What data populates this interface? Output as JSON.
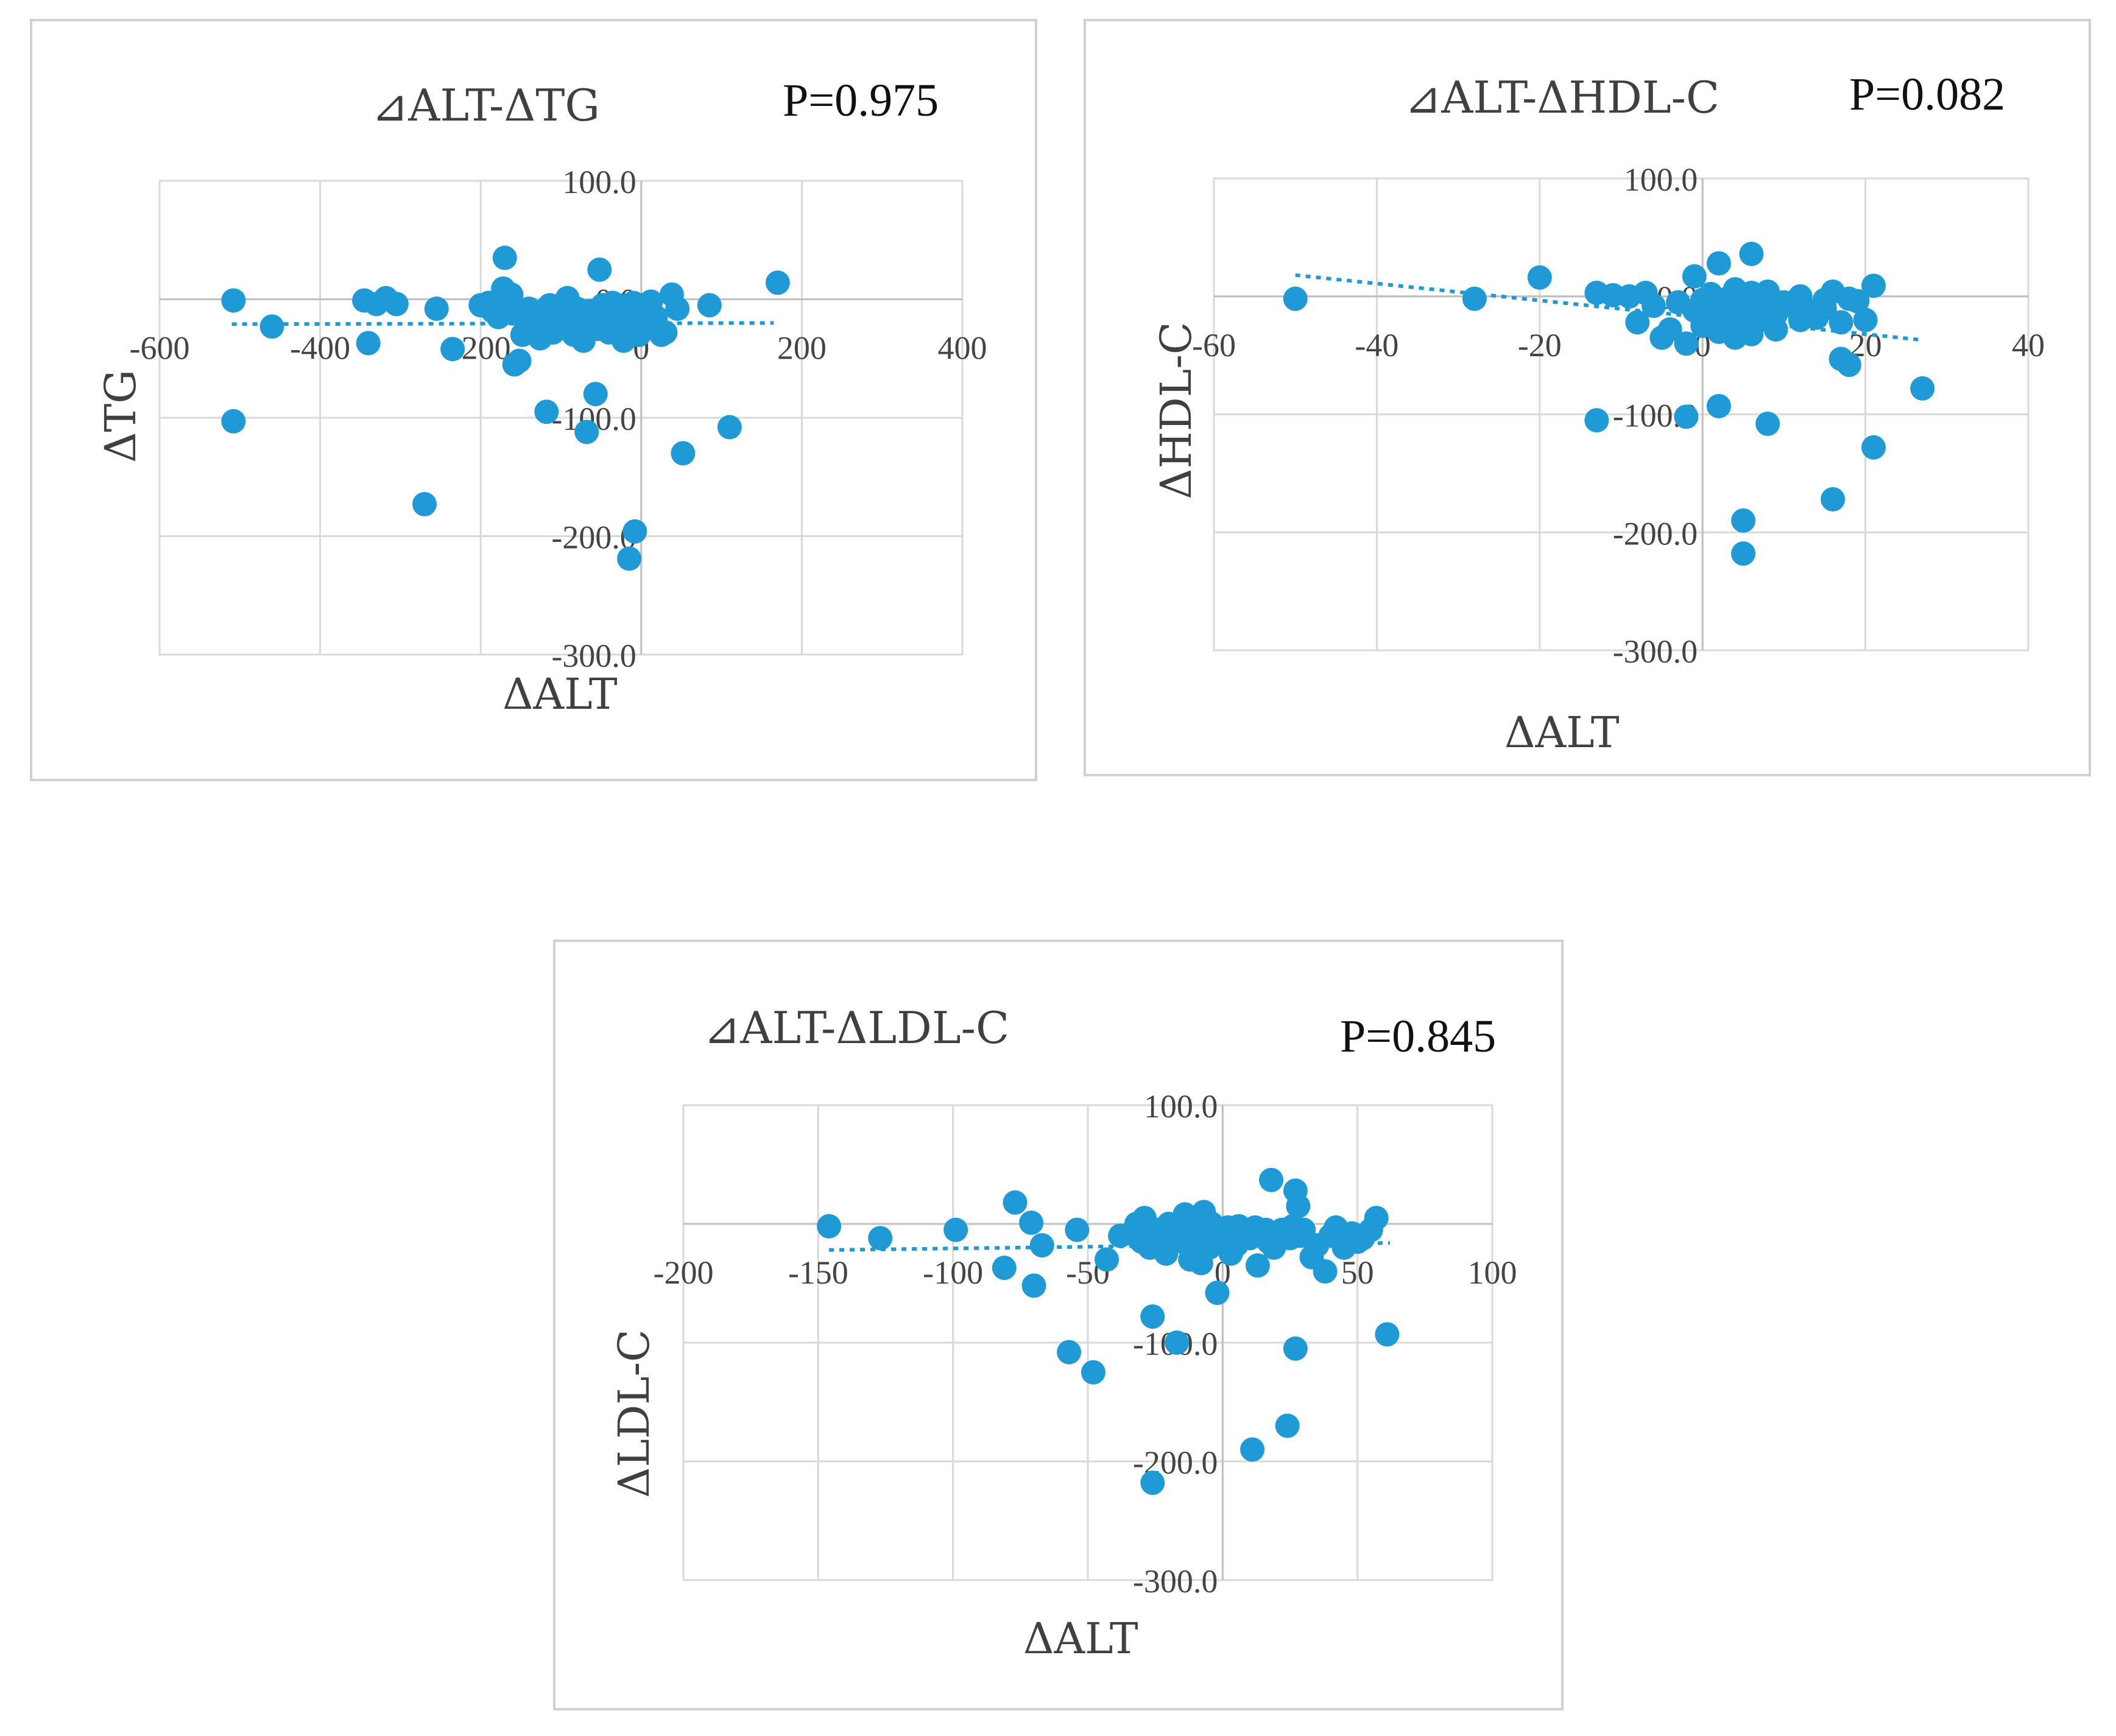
{
  "colors": {
    "points": "#1f9ad6",
    "trend": "#1f9ad6"
  },
  "chart_data": [
    {
      "type": "scatter",
      "title": "⊿ALT-ΔTG",
      "p_value": "P=0.975",
      "xlabel": "ΔALT",
      "ylabel": "ΔTG",
      "xlim": [
        -600,
        400
      ],
      "ylim": [
        -300,
        100
      ],
      "x_ticks": [
        "-600",
        "-400",
        "-200",
        "0",
        "200",
        "400"
      ],
      "y_ticks": [
        "100.0",
        "0.0",
        "-100.0",
        "-200.0",
        "-300.0"
      ],
      "grid": true,
      "trendline": {
        "x": [
          -510,
          165
        ],
        "y": [
          -21,
          -20
        ]
      },
      "points": [
        [
          -508,
          -1
        ],
        [
          -460,
          -23
        ],
        [
          -508,
          -103
        ],
        [
          -345,
          -1
        ],
        [
          -340,
          -37
        ],
        [
          -330,
          -4
        ],
        [
          -318,
          1
        ],
        [
          -305,
          -4
        ],
        [
          -255,
          -8
        ],
        [
          -235,
          -42
        ],
        [
          -270,
          -173
        ],
        [
          -200,
          -5
        ],
        [
          -190,
          -3
        ],
        [
          -185,
          -10
        ],
        [
          -178,
          -15
        ],
        [
          -172,
          9
        ],
        [
          -170,
          35
        ],
        [
          -168,
          0
        ],
        [
          -162,
          4
        ],
        [
          -160,
          -12
        ],
        [
          -158,
          -55
        ],
        [
          -152,
          -52
        ],
        [
          -148,
          -30
        ],
        [
          -143,
          -17
        ],
        [
          -140,
          -8
        ],
        [
          -136,
          -25
        ],
        [
          -130,
          -20
        ],
        [
          -126,
          -33
        ],
        [
          -122,
          -10
        ],
        [
          -118,
          -95
        ],
        [
          -114,
          -5
        ],
        [
          -110,
          -28
        ],
        [
          -105,
          -15
        ],
        [
          -100,
          -22
        ],
        [
          -96,
          -3
        ],
        [
          -92,
          1
        ],
        [
          -88,
          -12
        ],
        [
          -84,
          -30
        ],
        [
          -80,
          -8
        ],
        [
          -76,
          -18
        ],
        [
          -72,
          -35
        ],
        [
          -68,
          -112
        ],
        [
          -64,
          -10
        ],
        [
          -60,
          -20
        ],
        [
          -57,
          -80
        ],
        [
          -54,
          -25
        ],
        [
          -52,
          25
        ],
        [
          -48,
          -5
        ],
        [
          -44,
          -15
        ],
        [
          -40,
          -28
        ],
        [
          -36,
          -3
        ],
        [
          -32,
          -12
        ],
        [
          -28,
          -5
        ],
        [
          -25,
          -22
        ],
        [
          -22,
          -35
        ],
        [
          -18,
          -8
        ],
        [
          -15,
          -219
        ],
        [
          -10,
          -3
        ],
        [
          -8,
          -196
        ],
        [
          -6,
          -12
        ],
        [
          -3,
          -30
        ],
        [
          0,
          -5
        ],
        [
          5,
          -18
        ],
        [
          8,
          -8
        ],
        [
          12,
          -2
        ],
        [
          18,
          -15
        ],
        [
          25,
          -30
        ],
        [
          30,
          -28
        ],
        [
          38,
          4
        ],
        [
          45,
          -8
        ],
        [
          52,
          -130
        ],
        [
          85,
          -5
        ],
        [
          110,
          -108
        ],
        [
          170,
          14
        ]
      ]
    },
    {
      "type": "scatter",
      "title": "⊿ALT-ΔHDL-C",
      "p_value": "P=0.082",
      "xlabel": "ΔALT",
      "ylabel": "ΔHDL-C",
      "xlim": [
        -60,
        40
      ],
      "ylim": [
        -300,
        100
      ],
      "x_ticks": [
        "-60",
        "-40",
        "-20",
        "0",
        "20",
        "40"
      ],
      "y_ticks": [
        "100.0",
        "0.0",
        "-100.0",
        "-200.0",
        "-300.0"
      ],
      "grid": true,
      "trendline": {
        "x": [
          -50,
          27
        ],
        "y": [
          18,
          -37
        ]
      },
      "points": [
        [
          -50,
          -2
        ],
        [
          -28,
          -2
        ],
        [
          -20,
          16
        ],
        [
          -13,
          3
        ],
        [
          -13,
          -105
        ],
        [
          -11,
          1
        ],
        [
          -9,
          0
        ],
        [
          -8,
          -22
        ],
        [
          -7,
          3
        ],
        [
          -6,
          -8
        ],
        [
          -5,
          -35
        ],
        [
          -4,
          -28
        ],
        [
          -3,
          -5
        ],
        [
          -2,
          -40
        ],
        [
          -2,
          -102
        ],
        [
          -1,
          17
        ],
        [
          -1,
          -12
        ],
        [
          0,
          -3
        ],
        [
          0,
          -25
        ],
        [
          1,
          2
        ],
        [
          1,
          -18
        ],
        [
          2,
          -8
        ],
        [
          2,
          -30
        ],
        [
          2,
          -93
        ],
        [
          2,
          28
        ],
        [
          3,
          -12
        ],
        [
          3,
          -2
        ],
        [
          3,
          -22
        ],
        [
          4,
          6
        ],
        [
          4,
          -35
        ],
        [
          4,
          -15
        ],
        [
          5,
          -5
        ],
        [
          5,
          -190
        ],
        [
          5,
          -25
        ],
        [
          5,
          -218
        ],
        [
          5,
          -7
        ],
        [
          6,
          3
        ],
        [
          6,
          0
        ],
        [
          6,
          -32
        ],
        [
          6,
          -13
        ],
        [
          6,
          36
        ],
        [
          7,
          -20
        ],
        [
          7,
          -5
        ],
        [
          7,
          -8
        ],
        [
          8,
          -10
        ],
        [
          8,
          -2
        ],
        [
          8,
          4
        ],
        [
          8,
          -108
        ],
        [
          9,
          -28
        ],
        [
          9,
          -15
        ],
        [
          10,
          -5
        ],
        [
          11,
          -8
        ],
        [
          12,
          0
        ],
        [
          12,
          -20
        ],
        [
          13,
          -12
        ],
        [
          14,
          -18
        ],
        [
          15,
          -3
        ],
        [
          15,
          -10
        ],
        [
          16,
          4
        ],
        [
          16,
          -172
        ],
        [
          17,
          -22
        ],
        [
          17,
          -53
        ],
        [
          18,
          -58
        ],
        [
          18,
          -2
        ],
        [
          19,
          -4
        ],
        [
          20,
          -20
        ],
        [
          21,
          9
        ],
        [
          21,
          -128
        ],
        [
          27,
          -78
        ]
      ]
    },
    {
      "type": "scatter",
      "title": "⊿ALT-ΔLDL-C",
      "p_value": "P=0.845",
      "xlabel": "ΔALT",
      "ylabel": "ΔLDL-C",
      "xlim": [
        -200,
        100
      ],
      "ylim": [
        -300,
        100
      ],
      "x_ticks": [
        "-200",
        "-150",
        "-100",
        "-50",
        "0",
        "50",
        "100"
      ],
      "y_ticks": [
        "100.0",
        "0.0",
        "-100.0",
        "-200.0",
        "-300.0"
      ],
      "grid": true,
      "trendline": {
        "x": [
          -146,
          62
        ],
        "y": [
          -22,
          -16
        ]
      },
      "points": [
        [
          -146,
          -2
        ],
        [
          -127,
          -12
        ],
        [
          -99,
          -5
        ],
        [
          -81,
          -37
        ],
        [
          -77,
          18
        ],
        [
          -71,
          1
        ],
        [
          -70,
          -52
        ],
        [
          -67,
          -18
        ],
        [
          -57,
          -108
        ],
        [
          -54,
          -5
        ],
        [
          -48,
          -125
        ],
        [
          -43,
          -30
        ],
        [
          -38,
          -10
        ],
        [
          -34,
          -8
        ],
        [
          -32,
          0
        ],
        [
          -30,
          -15
        ],
        [
          -29,
          5
        ],
        [
          -27,
          -20
        ],
        [
          -26,
          -78
        ],
        [
          -26,
          -218
        ],
        [
          -25,
          -5
        ],
        [
          -23,
          -12
        ],
        [
          -21,
          -25
        ],
        [
          -20,
          0
        ],
        [
          -18,
          -10
        ],
        [
          -17,
          -100
        ],
        [
          -16,
          -5
        ],
        [
          -15,
          -15
        ],
        [
          -14,
          8
        ],
        [
          -13,
          -3
        ],
        [
          -12,
          -30
        ],
        [
          -11,
          -8
        ],
        [
          -10,
          -18
        ],
        [
          -9,
          -2
        ],
        [
          -8,
          -33
        ],
        [
          -7,
          10
        ],
        [
          -6,
          -5
        ],
        [
          -5,
          -20
        ],
        [
          -4,
          0
        ],
        [
          -3,
          -12
        ],
        [
          -2,
          -58
        ],
        [
          -1,
          -5
        ],
        [
          0,
          -8
        ],
        [
          1,
          -15
        ],
        [
          2,
          -3
        ],
        [
          3,
          -25
        ],
        [
          4,
          -10
        ],
        [
          5,
          -18
        ],
        [
          6,
          -2
        ],
        [
          7,
          -8
        ],
        [
          8,
          -5
        ],
        [
          10,
          -12
        ],
        [
          11,
          -190
        ],
        [
          12,
          -3
        ],
        [
          13,
          -35
        ],
        [
          14,
          -10
        ],
        [
          16,
          -5
        ],
        [
          17,
          -15
        ],
        [
          18,
          37
        ],
        [
          19,
          -20
        ],
        [
          20,
          -8
        ],
        [
          22,
          -5
        ],
        [
          24,
          -170
        ],
        [
          25,
          -12
        ],
        [
          26,
          -2
        ],
        [
          27,
          28
        ],
        [
          27,
          -105
        ],
        [
          28,
          15
        ],
        [
          29,
          -10
        ],
        [
          30,
          -5
        ],
        [
          33,
          -28
        ],
        [
          35,
          -18
        ],
        [
          38,
          -40
        ],
        [
          40,
          -10
        ],
        [
          42,
          -3
        ],
        [
          45,
          -20
        ],
        [
          48,
          -8
        ],
        [
          50,
          -15
        ],
        [
          52,
          -12
        ],
        [
          55,
          -5
        ],
        [
          57,
          5
        ],
        [
          61,
          -93
        ]
      ]
    }
  ]
}
